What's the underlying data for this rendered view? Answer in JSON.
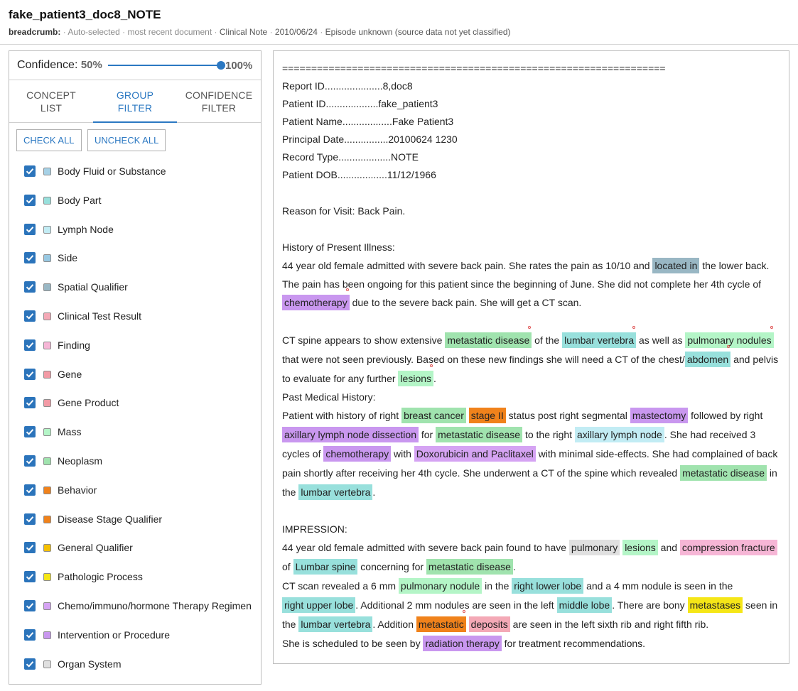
{
  "header": {
    "title": "fake_patient3_doc8_NOTE",
    "breadcrumb_label": "breadcrumb:",
    "crumbs": [
      "Auto-selected",
      "most recent document",
      "Clinical Note",
      "2010/06/24",
      "Episode unknown (source data not yet classified)"
    ],
    "sep": "·"
  },
  "confidence": {
    "label": "Confidence:",
    "min": "50%",
    "max": "100%"
  },
  "tabs": [
    {
      "line1": "CONCEPT",
      "line2": "LIST"
    },
    {
      "line1": "GROUP",
      "line2": "FILTER"
    },
    {
      "line1": "CONFIDENCE",
      "line2": "FILTER"
    }
  ],
  "active_tab": "GROUP FILTER",
  "buttons": {
    "check_all": "CHECK ALL",
    "uncheck_all": "UNCHECK ALL"
  },
  "categories": [
    {
      "label": "Body Fluid or Substance",
      "color": "#a6d1e6",
      "checked": true
    },
    {
      "label": "Body Part",
      "color": "#98e0dc",
      "checked": true
    },
    {
      "label": "Lymph Node",
      "color": "#c2ecf4",
      "checked": true
    },
    {
      "label": "Side",
      "color": "#98c8e2",
      "checked": true
    },
    {
      "label": "Spatial Qualifier",
      "color": "#99b7c4",
      "checked": true
    },
    {
      "label": "Clinical Test Result",
      "color": "#f4a9b6",
      "checked": true
    },
    {
      "label": "Finding",
      "color": "#f6b6d6",
      "checked": true
    },
    {
      "label": "Gene",
      "color": "#f29aa5",
      "checked": true
    },
    {
      "label": "Gene Product",
      "color": "#f29aa5",
      "checked": true
    },
    {
      "label": "Mass",
      "color": "#b4f5c7",
      "checked": true
    },
    {
      "label": "Neoplasm",
      "color": "#a0e3ae",
      "checked": true
    },
    {
      "label": "Behavior",
      "color": "#f0821b",
      "checked": true
    },
    {
      "label": "Disease Stage Qualifier",
      "color": "#f0821b",
      "checked": true
    },
    {
      "label": "General Qualifier",
      "color": "#f5c000",
      "checked": true
    },
    {
      "label": "Pathologic Process",
      "color": "#f5e617",
      "checked": true
    },
    {
      "label": "Chemo/immuno/hormone Therapy Regimen",
      "color": "#d5a3f3",
      "checked": true
    },
    {
      "label": "Intervention or Procedure",
      "color": "#c997ef",
      "checked": true
    },
    {
      "label": "Organ System",
      "color": "#e0e0e0",
      "checked": true
    }
  ],
  "document": {
    "lines": [
      {
        "h": 25,
        "segs": [
          {
            "t": "=================================================================="
          }
        ]
      },
      {
        "h": 25,
        "segs": [
          {
            "t": "Report ID.....................8,doc8"
          }
        ]
      },
      {
        "h": 25,
        "segs": [
          {
            "t": "Patient ID...................fake_patient3"
          }
        ]
      },
      {
        "h": 25,
        "segs": [
          {
            "t": "Patient Name..................Fake Patient3"
          }
        ]
      },
      {
        "h": 25,
        "segs": [
          {
            "t": "Principal Date................20100624 1230"
          }
        ]
      },
      {
        "h": 25,
        "segs": [
          {
            "t": "Record Type...................NOTE"
          }
        ]
      },
      {
        "h": 25,
        "segs": [
          {
            "t": "Patient DOB..................11/12/1966"
          }
        ]
      },
      {
        "blank": true
      },
      {
        "h": 25,
        "segs": [
          {
            "t": "Reason for Visit:  Back Pain."
          }
        ]
      },
      {
        "blank": true
      },
      {
        "h": 25,
        "segs": [
          {
            "t": "History of Present Illness:"
          }
        ]
      },
      {
        "h": 27,
        "segs": [
          {
            "t": "44 year old female admitted with severe back pain. She rates the pain as 10/10 and "
          },
          {
            "t": "located in",
            "c": "#99b7c4",
            "cat": "spatial-qualifier"
          },
          {
            "t": " the lower back."
          }
        ]
      },
      {
        "h": 26,
        "segs": [
          {
            "t": "The pain has been ongoing for this patient since the beginning of June. She did not complete her 4th cycle of"
          }
        ]
      },
      {
        "h": 27,
        "segs": [
          {
            "t": "chemotherapy",
            "c": "#c997ef",
            "cat": "intervention",
            "dot": true
          },
          {
            "t": " due to the severe back pain. She will get a CT scan."
          }
        ]
      },
      {
        "blank": true
      },
      {
        "h": 27,
        "segs": [
          {
            "t": "CT spine appears to show extensive "
          },
          {
            "t": "metastatic disease",
            "c": "#a0e3ae",
            "cat": "neoplasm",
            "dot": true
          },
          {
            "t": " of the "
          },
          {
            "t": "lumbar vertebra",
            "c": "#98e0dc",
            "cat": "body-part",
            "dot": true
          },
          {
            "t": " as well as "
          },
          {
            "t": "pulmonary nodules",
            "c": "#b4f5c7",
            "cat": "mass",
            "dot": true
          }
        ]
      },
      {
        "h": 27,
        "segs": [
          {
            "t": "that were not seen previously. Based on these new findings she will need a CT of the chest/"
          },
          {
            "t": "abdomen",
            "c": "#98e0dc",
            "cat": "body-part",
            "dot": true
          },
          {
            "t": " and pelvis"
          }
        ]
      },
      {
        "h": 27,
        "segs": [
          {
            "t": "to evaluate for any further "
          },
          {
            "t": "lesions",
            "c": "#b4f5c7",
            "cat": "mass",
            "dot": true
          },
          {
            "t": "."
          }
        ]
      },
      {
        "h": 26,
        "segs": [
          {
            "t": "Past Medical History:"
          }
        ]
      },
      {
        "h": 27,
        "segs": [
          {
            "t": "Patient with history of right "
          },
          {
            "t": "breast cancer",
            "c": "#a0e3ae",
            "cat": "neoplasm"
          },
          {
            "t": " "
          },
          {
            "t": "stage II",
            "c": "#f0821b",
            "cat": "disease-stage"
          },
          {
            "t": " status post right segmental "
          },
          {
            "t": "mastectomy",
            "c": "#c997ef",
            "cat": "intervention"
          },
          {
            "t": " followed by right"
          }
        ]
      },
      {
        "h": 27,
        "segs": [
          {
            "t": "axillary lymph node dissection",
            "c": "#c997ef",
            "cat": "intervention"
          },
          {
            "t": " for "
          },
          {
            "t": "metastatic disease",
            "c": "#a0e3ae",
            "cat": "neoplasm"
          },
          {
            "t": " to the right "
          },
          {
            "t": "axillary lymph node",
            "c": "#c2ecf4",
            "cat": "lymph-node"
          },
          {
            "t": ". She had received 3"
          }
        ]
      },
      {
        "h": 27,
        "segs": [
          {
            "t": "cycles of "
          },
          {
            "t": "chemotherapy",
            "c": "#c997ef",
            "cat": "intervention"
          },
          {
            "t": " with "
          },
          {
            "t": "Doxorubicin and Paclitaxel",
            "c": "#d5a3f3",
            "cat": "therapy-regimen"
          },
          {
            "t": " with minimal side-effects. She had complained of back"
          }
        ]
      },
      {
        "h": 27,
        "segs": [
          {
            "t": "pain shortly after receiving her 4th cycle. She underwent a CT of the spine which revealed "
          },
          {
            "t": "metastatic disease",
            "c": "#a0e3ae",
            "cat": "neoplasm"
          },
          {
            "t": " in"
          }
        ]
      },
      {
        "h": 27,
        "segs": [
          {
            "t": "the "
          },
          {
            "t": "lumbar vertebra",
            "c": "#98e0dc",
            "cat": "body-part"
          },
          {
            "t": "."
          }
        ]
      },
      {
        "blank": true
      },
      {
        "h": 26,
        "segs": [
          {
            "t": "IMPRESSION:"
          }
        ]
      },
      {
        "h": 27,
        "segs": [
          {
            "t": "44 year old female admitted with severe back pain found to have "
          },
          {
            "t": "pulmonary",
            "c": "#e0e0e0",
            "cat": "organ-system"
          },
          {
            "t": " "
          },
          {
            "t": "lesions",
            "c": "#b4f5c7",
            "cat": "mass"
          },
          {
            "t": " and "
          },
          {
            "t": "compression fracture",
            "c": "#f6b6d6",
            "cat": "finding"
          }
        ]
      },
      {
        "h": 27,
        "segs": [
          {
            "t": "of "
          },
          {
            "t": "Lumbar spine",
            "c": "#98e0dc",
            "cat": "body-part"
          },
          {
            "t": " concerning for "
          },
          {
            "t": "metastatic disease",
            "c": "#a0e3ae",
            "cat": "neoplasm"
          },
          {
            "t": "."
          }
        ]
      },
      {
        "h": 27,
        "segs": [
          {
            "t": "CT scan revealed a 6 mm "
          },
          {
            "t": "pulmonary nodule",
            "c": "#b4f5c7",
            "cat": "mass"
          },
          {
            "t": " in the "
          },
          {
            "t": "right lower lobe",
            "c": "#98e0dc",
            "cat": "body-part"
          },
          {
            "t": " and a 4 mm nodule is seen in the"
          }
        ]
      },
      {
        "h": 27,
        "segs": [
          {
            "t": "right upper lobe",
            "c": "#98e0dc",
            "cat": "body-part"
          },
          {
            "t": ".  Additional 2 mm nodules are seen in the left "
          },
          {
            "t": "middle lobe",
            "c": "#98e0dc",
            "cat": "body-part"
          },
          {
            "t": ". There are bony "
          },
          {
            "t": "metastases",
            "c": "#f5e617",
            "cat": "pathologic-process"
          },
          {
            "t": " seen in"
          }
        ]
      },
      {
        "h": 27,
        "segs": [
          {
            "t": "the "
          },
          {
            "t": "lumbar vertebra",
            "c": "#98e0dc",
            "cat": "body-part"
          },
          {
            "t": ". Addition "
          },
          {
            "t": "metastatic",
            "c": "#f0821b",
            "cat": "behavior",
            "dot": true
          },
          {
            "t": " "
          },
          {
            "t": "deposits",
            "c": "#f4a9b6",
            "cat": "clinical-test-result"
          },
          {
            "t": " are seen in the left sixth rib and right fifth rib."
          }
        ]
      },
      {
        "h": 27,
        "segs": [
          {
            "t": "She is scheduled to be seen by "
          },
          {
            "t": "radiation therapy",
            "c": "#c997ef",
            "cat": "intervention"
          },
          {
            "t": " for treatment recommendations."
          }
        ]
      }
    ]
  }
}
